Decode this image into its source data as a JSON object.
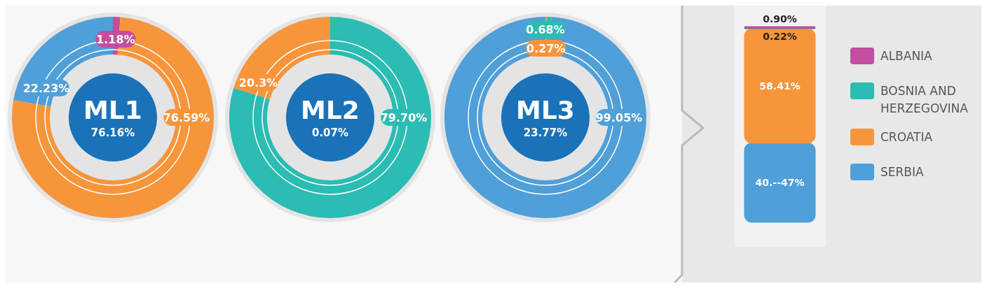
{
  "chart_data": [
    {
      "type": "donut",
      "title": "ML1",
      "subtitle": "76.16%",
      "categories": [
        null,
        null,
        null
      ],
      "values": [
        1.18,
        76.59,
        22.23
      ],
      "colors": [
        "#c34da0",
        "#f7953b",
        "#4f9fd8"
      ],
      "value_labels": [
        "1.18%",
        "76.59%",
        "22.23%"
      ]
    },
    {
      "type": "donut",
      "title": "ML2",
      "subtitle": "0.07%",
      "categories": [
        null,
        null
      ],
      "values": [
        79.7,
        20.3
      ],
      "colors": [
        "#2bbcb3",
        "#f7953b"
      ],
      "value_labels": [
        "79.70%",
        "20.3%"
      ]
    },
    {
      "type": "donut",
      "title": "ML3",
      "subtitle": "23.77%",
      "categories": [
        null,
        null,
        null
      ],
      "values": [
        0.27,
        0.68,
        99.05
      ],
      "colors": [
        "#f7953b",
        "#2bbcb3",
        "#4f9fd8"
      ],
      "value_labels": [
        "0.27%",
        "0.68%",
        "99.05%"
      ]
    },
    {
      "type": "bar",
      "stacked": true,
      "categories": [
        null
      ],
      "legend": "right",
      "series": [
        {
          "name": "SERBIA",
          "color": "#4f9fd8",
          "values": [
            40.47
          ],
          "value_labels": [
            "40.--47%"
          ]
        },
        {
          "name": "CROATIA",
          "color": "#f7953b",
          "values": [
            58.41
          ],
          "value_labels": [
            "58.41%"
          ]
        },
        {
          "name": "BOSNIA AND HERZEGOVINA",
          "color": "#2bbcb3",
          "values": [
            0.22
          ],
          "value_labels": [
            "0.22%"
          ]
        },
        {
          "name": "ALBANIA",
          "color": "#c34da0",
          "values": [
            0.9
          ],
          "value_labels": [
            "0.90%"
          ]
        }
      ]
    }
  ]
}
